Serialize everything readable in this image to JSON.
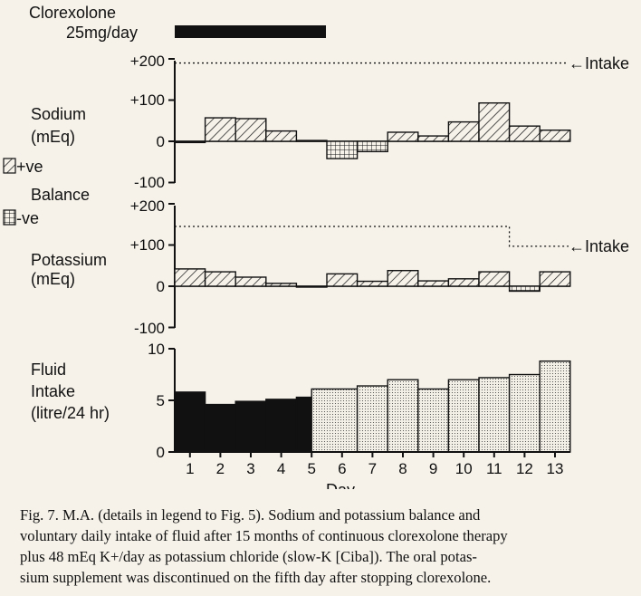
{
  "drug": {
    "name": "Clorexolone",
    "dose": "25mg/day"
  },
  "legend": {
    "pos": "+ve",
    "neg_title": "Balance",
    "neg": "-ve"
  },
  "intake_label": "Intake",
  "xlabel": "Day",
  "panels": {
    "sodium": {
      "label_line1": "Sodium",
      "label_line2": "(mEq)",
      "ticks": [
        "+200",
        "+100",
        "0",
        "-100"
      ]
    },
    "potassium": {
      "label_line1": "Potassium",
      "label_line2": "(mEq)",
      "ticks": [
        "+200",
        "+100",
        "0",
        "-100"
      ]
    },
    "fluid": {
      "label_line1": "Fluid",
      "label_line2": "Intake",
      "label_line3": "(litre/24 hr)",
      "ticks": [
        "10",
        "5",
        "0"
      ]
    }
  },
  "caption": {
    "line1": "Fig. 7. M.A. (details in legend to Fig. 5). Sodium and potassium balance and",
    "line2": "voluntary daily intake of fluid after 15 months of continuous clorexolone therapy",
    "line3": "plus 48 mEq K+/day as potassium chloride (slow-K [Ciba]). The oral potas-",
    "line4": "sium supplement was discontinued on the fifth day after stopping clorexolone."
  },
  "chart_data": [
    {
      "type": "bar",
      "panel": "sodium",
      "ylabel": "Sodium (mEq)",
      "x": [
        1,
        2,
        3,
        4,
        5,
        6,
        7,
        8,
        9,
        10,
        11,
        12,
        13
      ],
      "values": [
        -3,
        57,
        55,
        25,
        2,
        -42,
        -25,
        22,
        13,
        47,
        93,
        37,
        27
      ],
      "intake": 190,
      "ylim": [
        -100,
        200
      ],
      "xlabel": "Day"
    },
    {
      "type": "bar",
      "panel": "potassium",
      "ylabel": "Potassium (mEq)",
      "x": [
        1,
        2,
        3,
        4,
        5,
        6,
        7,
        8,
        9,
        10,
        11,
        12,
        13
      ],
      "values": [
        42,
        35,
        22,
        7,
        0,
        30,
        12,
        38,
        13,
        18,
        35,
        -12,
        35
      ],
      "intake_days": [
        1,
        2,
        3,
        4,
        5,
        6,
        7,
        8,
        9,
        10,
        11,
        12,
        13
      ],
      "intake": [
        145,
        145,
        145,
        145,
        145,
        145,
        145,
        145,
        145,
        145,
        145,
        97,
        97
      ],
      "ylim": [
        -100,
        200
      ],
      "xlabel": "Day"
    },
    {
      "type": "bar",
      "panel": "fluid",
      "ylabel": "Fluid Intake (litre/24 hr)",
      "x": [
        1,
        2,
        3,
        4,
        5,
        6,
        7,
        8,
        9,
        10,
        11,
        12,
        13
      ],
      "categories": [
        "1",
        "2",
        "3",
        "4",
        "5",
        "6",
        "7",
        "8",
        "9",
        "10",
        "11",
        "12",
        "13"
      ],
      "values": [
        5.8,
        4.6,
        4.9,
        5.1,
        5.3,
        6.1,
        6.4,
        7.0,
        6.1,
        7.0,
        7.2,
        7.5,
        8.8
      ],
      "on_drug_days": [
        1,
        2,
        3,
        4,
        5
      ],
      "ylim": [
        0,
        10
      ],
      "xlabel": "Day"
    }
  ],
  "drug_days": [
    1,
    5.5
  ]
}
